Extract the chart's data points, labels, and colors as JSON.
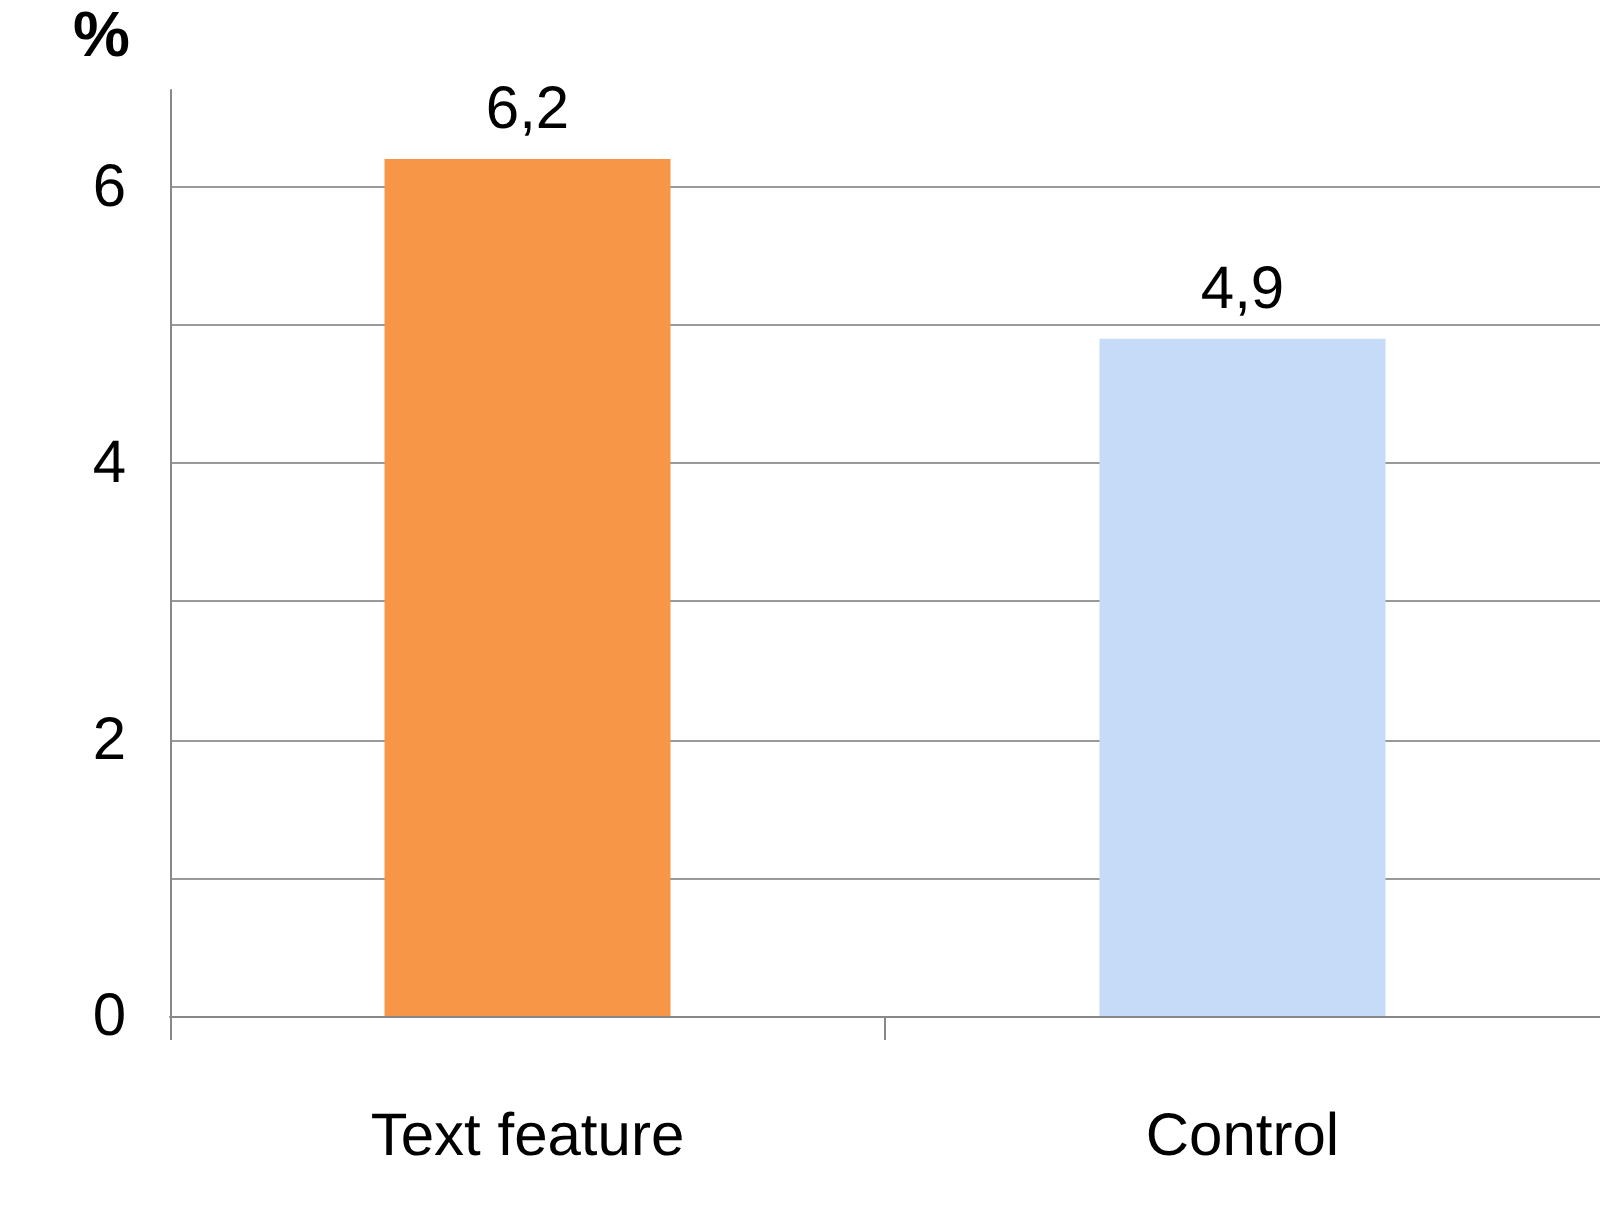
{
  "chart_data": {
    "type": "bar",
    "ylabel": "%",
    "categories": [
      "Text feature",
      "Control"
    ],
    "values": [
      6.2,
      4.9
    ],
    "colors": [
      "#f79646",
      "#c6dbf8"
    ],
    "value_labels": [
      "6,2",
      "4,9"
    ],
    "ylim": [
      0,
      6.7
    ],
    "yticks": [
      0,
      {
        "value": 1,
        "label": null
      },
      2,
      {
        "value": 3,
        "label": null
      },
      4,
      {
        "value": 5,
        "label": null
      },
      6
    ],
    "grid": "y"
  }
}
